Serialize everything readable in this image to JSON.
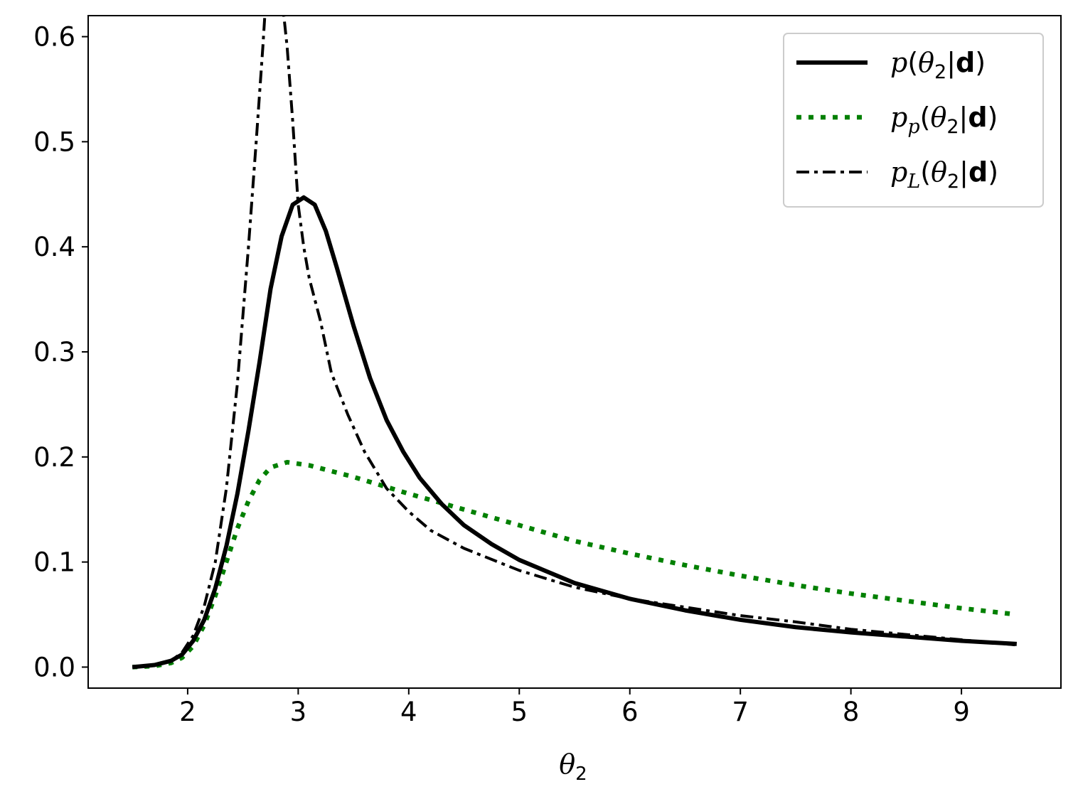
{
  "chart_data": {
    "type": "line",
    "xlabel": "θ2",
    "ylabel": "",
    "xlim": [
      1.1,
      9.9
    ],
    "ylim": [
      -0.02,
      0.62
    ],
    "xticks": [
      2,
      3,
      4,
      5,
      6,
      7,
      8,
      9
    ],
    "yticks": [
      0.0,
      0.1,
      0.2,
      0.3,
      0.4,
      0.5,
      0.6
    ],
    "xtick_labels": [
      "2",
      "3",
      "4",
      "5",
      "6",
      "7",
      "8",
      "9"
    ],
    "ytick_labels": [
      "0.0",
      "0.1",
      "0.2",
      "0.3",
      "0.4",
      "0.5",
      "0.6"
    ],
    "grid": false,
    "legend_position": "top-right",
    "legend": [
      {
        "base": "p",
        "sub": "",
        "open": "(θ",
        "sub2": "2",
        "bar": "|",
        "bold": "d",
        "close": ")"
      },
      {
        "base": "p",
        "sub": "p",
        "open": "(θ",
        "sub2": "2",
        "bar": "|",
        "bold": "d",
        "close": ")"
      },
      {
        "base": "p",
        "sub": "L",
        "open": "(θ",
        "sub2": "2",
        "bar": "|",
        "bold": "d",
        "close": ")"
      }
    ],
    "series": [
      {
        "name": "p(θ2|d)",
        "color": "#000000",
        "style": "solid",
        "x": [
          1.5,
          1.7,
          1.85,
          1.95,
          2.05,
          2.15,
          2.25,
          2.35,
          2.45,
          2.55,
          2.65,
          2.75,
          2.85,
          2.95,
          3.05,
          3.15,
          3.25,
          3.35,
          3.5,
          3.65,
          3.8,
          3.95,
          4.1,
          4.3,
          4.5,
          4.75,
          5.0,
          5.5,
          6.0,
          6.5,
          7.0,
          7.5,
          8.0,
          8.5,
          9.0,
          9.5
        ],
        "y": [
          0.0,
          0.002,
          0.006,
          0.012,
          0.025,
          0.045,
          0.075,
          0.115,
          0.165,
          0.225,
          0.29,
          0.36,
          0.41,
          0.44,
          0.447,
          0.44,
          0.415,
          0.38,
          0.325,
          0.275,
          0.235,
          0.205,
          0.18,
          0.155,
          0.135,
          0.117,
          0.102,
          0.08,
          0.065,
          0.054,
          0.045,
          0.038,
          0.033,
          0.029,
          0.025,
          0.022
        ]
      },
      {
        "name": "p_p(θ2|d)",
        "color": "#008000",
        "style": "dotted",
        "x": [
          1.5,
          1.7,
          1.85,
          1.95,
          2.05,
          2.15,
          2.25,
          2.35,
          2.45,
          2.55,
          2.65,
          2.75,
          2.9,
          3.1,
          3.5,
          4.0,
          4.5,
          5.0,
          5.5,
          6.0,
          6.5,
          7.0,
          7.5,
          8.0,
          8.5,
          9.0,
          9.5
        ],
        "y": [
          0.0,
          0.001,
          0.004,
          0.009,
          0.02,
          0.04,
          0.068,
          0.1,
          0.132,
          0.158,
          0.178,
          0.19,
          0.195,
          0.192,
          0.181,
          0.165,
          0.15,
          0.135,
          0.12,
          0.108,
          0.097,
          0.087,
          0.078,
          0.07,
          0.063,
          0.056,
          0.05
        ]
      },
      {
        "name": "p_L(θ2|d)",
        "color": "#000000",
        "style": "dashdot",
        "x": [
          1.5,
          1.7,
          1.85,
          1.95,
          2.05,
          2.15,
          2.25,
          2.35,
          2.45,
          2.55,
          2.62,
          2.68,
          2.71,
          2.85,
          2.9,
          2.95,
          3.0,
          3.05,
          3.1,
          3.2,
          3.3,
          3.45,
          3.6,
          3.8,
          4.0,
          4.2,
          4.5,
          5.0,
          5.5,
          6.0,
          6.5,
          7.0,
          7.5,
          8.0,
          8.5,
          9.0,
          9.5
        ],
        "y": [
          0.0,
          0.002,
          0.006,
          0.014,
          0.03,
          0.058,
          0.1,
          0.17,
          0.27,
          0.4,
          0.5,
          0.59,
          0.64,
          0.64,
          0.59,
          0.52,
          0.44,
          0.4,
          0.37,
          0.33,
          0.28,
          0.24,
          0.205,
          0.17,
          0.148,
          0.13,
          0.113,
          0.092,
          0.076,
          0.065,
          0.057,
          0.049,
          0.043,
          0.036,
          0.031,
          0.026,
          0.021
        ]
      }
    ]
  }
}
